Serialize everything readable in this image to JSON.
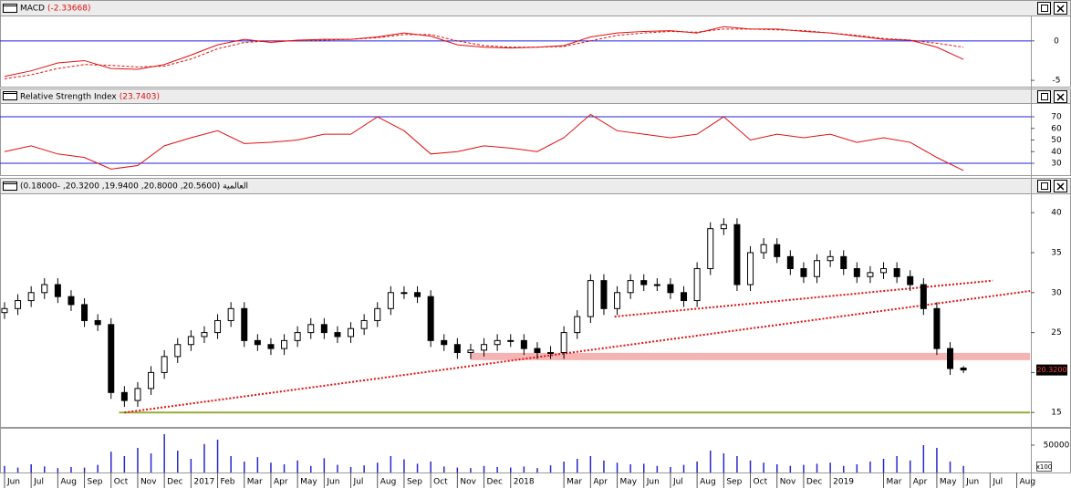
{
  "chart_data": [
    {
      "type": "candlestick",
      "title": "العالمية (20.5600, 20.8000, 19.9400, 20.3200, -0.18000)",
      "x": [
        0,
        0.5,
        1,
        1.5,
        2,
        2.5,
        3,
        3.5,
        4,
        4.5,
        5,
        5.5,
        6,
        6.5,
        7,
        7.5,
        8,
        8.5,
        9,
        9.5,
        10,
        10.5,
        11,
        11.5,
        12,
        12.5,
        13,
        13.5,
        14,
        14.5,
        15,
        15.5,
        16,
        16.5,
        17,
        17.5,
        18,
        18.5,
        19,
        19.5,
        20,
        20.5,
        21,
        21.5,
        22,
        22.5,
        23,
        23.5,
        24,
        24.5,
        25,
        25.5,
        26,
        26.5,
        27,
        27.5,
        28,
        28.5,
        29,
        29.5,
        30,
        30.5,
        31,
        31.5,
        32,
        32.5,
        33,
        33.5,
        34,
        34.5,
        35,
        35.5,
        36
      ],
      "open": [
        27.5,
        28,
        29,
        30,
        31,
        29.5,
        28.5,
        26.5,
        26,
        17.5,
        16.5,
        18,
        20,
        22,
        23.5,
        24.5,
        25,
        26.5,
        28,
        24,
        23.5,
        23,
        24,
        25,
        26,
        25,
        24.5,
        25.5,
        26.5,
        28,
        30,
        30,
        29.5,
        24,
        23.5,
        22.5,
        22.8,
        23.5,
        24,
        24,
        23,
        22.5,
        22.5,
        25,
        27,
        31.5,
        28,
        30,
        31.5,
        31,
        31,
        30,
        29,
        33,
        38,
        38.5,
        31,
        35,
        36,
        34.5,
        33,
        32,
        34,
        34.5,
        33,
        32,
        32.5,
        33,
        32,
        31,
        28,
        23,
        20.56
      ],
      "high": [
        28.8,
        29.8,
        30.8,
        31.8,
        31.8,
        30.3,
        29.3,
        27.3,
        26.8,
        18.3,
        18.8,
        20.8,
        22.8,
        24.3,
        25.3,
        25.8,
        27.3,
        28.8,
        28.8,
        24.8,
        24.3,
        24.8,
        25.8,
        26.8,
        26.8,
        25.8,
        26.3,
        27.3,
        28.8,
        30.8,
        30.8,
        30.8,
        30.3,
        24.8,
        24.3,
        23.6,
        24.3,
        24.8,
        24.8,
        24.8,
        23.8,
        23.3,
        25.8,
        27.8,
        32.3,
        32.3,
        30.8,
        32.3,
        32.3,
        31.8,
        31.8,
        30.8,
        33.8,
        38.8,
        39.3,
        39.3,
        35.8,
        36.8,
        36.8,
        35.3,
        33.8,
        34.8,
        35.3,
        35.3,
        33.8,
        33.3,
        33.8,
        33.8,
        32.8,
        31.8,
        28.8,
        23.8,
        20.8
      ],
      "low": [
        26.7,
        27.2,
        28.2,
        29.2,
        28.7,
        27.7,
        25.7,
        25.2,
        16.7,
        15.7,
        15.7,
        17.2,
        19.2,
        21.2,
        22.7,
        23.7,
        24.2,
        25.7,
        23.2,
        22.7,
        22.2,
        22.2,
        23.2,
        24.2,
        24.2,
        23.7,
        23.7,
        24.7,
        25.7,
        27.2,
        29.2,
        28.7,
        23.2,
        22.7,
        21.7,
        21.7,
        22.0,
        22.7,
        23.2,
        22.2,
        21.7,
        21.7,
        21.7,
        24.2,
        26.2,
        27.2,
        27.2,
        29.2,
        30.2,
        30.2,
        29.2,
        28.2,
        28.2,
        32.2,
        37.2,
        30.2,
        30.2,
        34.2,
        33.7,
        32.2,
        31.2,
        31.2,
        33.2,
        32.2,
        31.2,
        31.2,
        31.7,
        31.2,
        30.2,
        27.2,
        22.2,
        19.7,
        19.94
      ],
      "close": [
        28,
        29,
        30,
        31,
        29.5,
        28.5,
        26.5,
        26,
        17.5,
        16.5,
        18,
        20,
        22,
        23.5,
        24.5,
        25,
        26.5,
        28,
        24,
        23.5,
        23,
        24,
        25,
        26,
        25,
        24.5,
        25.5,
        26.5,
        28,
        30,
        30,
        29.5,
        24,
        23.5,
        22.5,
        22.8,
        23.5,
        24,
        24,
        23,
        22.5,
        22.5,
        25,
        27,
        31.5,
        28,
        30,
        31.5,
        31,
        31,
        30,
        29,
        33,
        38,
        38.5,
        31,
        35,
        36,
        34.5,
        33,
        32,
        34,
        34.5,
        33,
        32,
        32.5,
        33,
        32,
        31,
        28,
        23,
        20.5,
        20.32
      ],
      "color_up": "#ffffff",
      "color_down": "#000000",
      "xlim": [
        -0.17,
        38.53
      ],
      "ylim": [
        13.2,
        42.3
      ],
      "yticks": [
        15,
        20,
        25,
        30,
        35,
        40
      ],
      "last_label": "20.3200",
      "trend_lines": [
        {
          "x": [
            4.3,
            38.5
          ],
          "y": [
            15,
            15
          ],
          "color": "#9aaa3a",
          "style": "solid"
        },
        {
          "x": [
            17.5,
            38.5
          ],
          "y": [
            22,
            22
          ],
          "color": "#f4b4b4",
          "style": "band"
        },
        {
          "x": [
            4.5,
            38.5
          ],
          "y": [
            15,
            30.2
          ],
          "color": "#e01010",
          "style": "dotted"
        },
        {
          "x": [
            22.9,
            37.1
          ],
          "y": [
            27,
            31.5
          ],
          "color": "#e01010",
          "style": "dotted"
        }
      ]
    },
    {
      "type": "line",
      "title": "MACD",
      "value_label": "(-2.33668)",
      "x": [
        0,
        1,
        2,
        3,
        4,
        5,
        6,
        7,
        8,
        9,
        10,
        11,
        12,
        13,
        14,
        15,
        16,
        17,
        18,
        19,
        20,
        21,
        22,
        23,
        24,
        25,
        26,
        27,
        28,
        29,
        30,
        31,
        32,
        33,
        34,
        35,
        36
      ],
      "series": [
        {
          "color": "#e01010",
          "style": "solid",
          "values": [
            -4.5,
            -3.8,
            -2.8,
            -2.5,
            -3.5,
            -3.6,
            -3.0,
            -1.8,
            -0.5,
            0.2,
            -0.2,
            0.1,
            0.2,
            0.2,
            0.5,
            1.0,
            0.6,
            -0.5,
            -0.8,
            -0.9,
            -0.8,
            -0.6,
            0.5,
            1.0,
            1.2,
            1.3,
            1.0,
            1.8,
            1.5,
            1.5,
            1.2,
            1.0,
            0.6,
            0.2,
            0.1,
            -0.8,
            -2.34
          ]
        },
        {
          "color": "#e01010",
          "style": "dashed",
          "values": [
            -4.8,
            -4.3,
            -3.5,
            -3.0,
            -3.1,
            -3.3,
            -3.2,
            -2.3,
            -1.0,
            -0.2,
            0.0,
            0.0,
            0.1,
            0.2,
            0.4,
            0.8,
            0.8,
            0.0,
            -0.6,
            -0.8,
            -0.8,
            -0.7,
            0.0,
            0.7,
            1.0,
            1.2,
            1.1,
            1.5,
            1.5,
            1.4,
            1.3,
            1.0,
            0.7,
            0.3,
            0.1,
            -0.3,
            -0.8
          ]
        }
      ],
      "levels": [
        0
      ],
      "level_color": "#2020e0",
      "xlim": [
        -0.17,
        38.53
      ],
      "ylim": [
        -5.8,
        3.1
      ],
      "yticks": [
        0,
        -5
      ]
    },
    {
      "type": "line",
      "title": "Relative Strength Index",
      "value_label": "(23.7403)",
      "x": [
        0,
        1,
        2,
        3,
        4,
        5,
        6,
        7,
        8,
        9,
        10,
        11,
        12,
        13,
        14,
        15,
        16,
        17,
        18,
        19,
        20,
        21,
        22,
        23,
        24,
        25,
        26,
        27,
        28,
        29,
        30,
        31,
        32,
        33,
        34,
        35,
        36
      ],
      "series": [
        {
          "color": "#e01010",
          "style": "solid",
          "values": [
            40,
            45,
            38,
            35,
            25,
            28,
            45,
            52,
            58,
            47,
            48,
            50,
            55,
            55,
            70,
            58,
            38,
            40,
            45,
            43,
            40,
            52,
            72,
            58,
            55,
            52,
            55,
            70,
            50,
            55,
            52,
            55,
            48,
            52,
            48,
            35,
            23.74
          ]
        }
      ],
      "levels": [
        30,
        70
      ],
      "level_color": "#2020e0",
      "xlim": [
        -0.17,
        38.53
      ],
      "ylim": [
        19.8,
        81
      ],
      "yticks": [
        30,
        40,
        50,
        60,
        70
      ]
    },
    {
      "type": "bar",
      "color": "#2828c8",
      "multiplier_label": "x100",
      "x": [
        0,
        0.5,
        1,
        1.5,
        2,
        2.5,
        3,
        3.5,
        4,
        4.5,
        5,
        5.5,
        6,
        6.5,
        7,
        7.5,
        8,
        8.5,
        9,
        9.5,
        10,
        10.5,
        11,
        11.5,
        12,
        12.5,
        13,
        13.5,
        14,
        14.5,
        15,
        15.5,
        16,
        16.5,
        17,
        17.5,
        18,
        18.5,
        19,
        19.5,
        20,
        20.5,
        21,
        21.5,
        22,
        22.5,
        23,
        23.5,
        24,
        24.5,
        25,
        25.5,
        26,
        26.5,
        27,
        27.5,
        28,
        28.5,
        29,
        29.5,
        30,
        30.5,
        31,
        31.5,
        32,
        32.5,
        33,
        33.5,
        34,
        34.5,
        35,
        35.5,
        36
      ],
      "values": [
        12000,
        9000,
        15000,
        11000,
        8000,
        10000,
        9000,
        14000,
        38000,
        30000,
        45000,
        35000,
        70000,
        40000,
        25000,
        52000,
        60000,
        30000,
        20000,
        28000,
        18000,
        15000,
        22000,
        12000,
        26000,
        14000,
        10000,
        13000,
        18000,
        30000,
        24000,
        16000,
        20000,
        11000,
        9000,
        8000,
        12000,
        10000,
        9000,
        11000,
        8000,
        13000,
        20000,
        25000,
        30000,
        22000,
        18000,
        15000,
        16000,
        12000,
        10000,
        14000,
        20000,
        40000,
        35000,
        30000,
        22000,
        18000,
        15000,
        12000,
        14000,
        16000,
        18000,
        12000,
        15000,
        20000,
        25000,
        30000,
        22000,
        50000,
        45000,
        20000,
        12000
      ],
      "xlim": [
        -0.17,
        38.53
      ],
      "ylim": [
        0,
        80000
      ],
      "yticks": [
        50000
      ],
      "xticks": [
        {
          "value": 0,
          "label": "Jun"
        },
        {
          "value": 1,
          "label": "Jul"
        },
        {
          "value": 2,
          "label": "Aug"
        },
        {
          "value": 3,
          "label": "Sep"
        },
        {
          "value": 4,
          "label": "Oct"
        },
        {
          "value": 5,
          "label": "Nov"
        },
        {
          "value": 6,
          "label": "Dec"
        },
        {
          "value": 7,
          "label": "2017"
        },
        {
          "value": 8,
          "label": "Feb"
        },
        {
          "value": 9,
          "label": "Mar"
        },
        {
          "value": 10,
          "label": "Apr"
        },
        {
          "value": 11,
          "label": "May"
        },
        {
          "value": 12,
          "label": "Jun"
        },
        {
          "value": 13,
          "label": "Jul"
        },
        {
          "value": 14,
          "label": "Aug"
        },
        {
          "value": 15,
          "label": "Sep"
        },
        {
          "value": 16,
          "label": "Oct"
        },
        {
          "value": 17,
          "label": "Nov"
        },
        {
          "value": 18,
          "label": "Dec"
        },
        {
          "value": 19,
          "label": "2018"
        },
        {
          "value": 21,
          "label": "Mar"
        },
        {
          "value": 22,
          "label": "Apr"
        },
        {
          "value": 23,
          "label": "May"
        },
        {
          "value": 24,
          "label": "Jun"
        },
        {
          "value": 25,
          "label": "Jul"
        },
        {
          "value": 26,
          "label": "Aug"
        },
        {
          "value": 27,
          "label": "Sep"
        },
        {
          "value": 28,
          "label": "Oct"
        },
        {
          "value": 29,
          "label": "Nov"
        },
        {
          "value": 30,
          "label": "Dec"
        },
        {
          "value": 31,
          "label": "2019"
        },
        {
          "value": 33,
          "label": "Mar"
        },
        {
          "value": 34,
          "label": "Apr"
        },
        {
          "value": 35,
          "label": "May"
        },
        {
          "value": 36,
          "label": "Jun"
        },
        {
          "value": 37,
          "label": "Jul"
        },
        {
          "value": 38,
          "label": "Aug"
        }
      ]
    }
  ]
}
